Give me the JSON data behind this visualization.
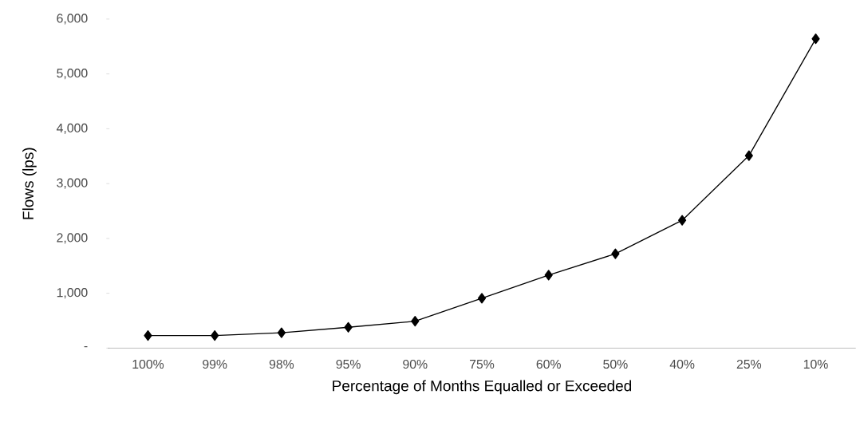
{
  "chart_data": {
    "type": "line",
    "xlabel": "Percentage of Months Equalled or Exceeded",
    "ylabel": "Flows (lps)",
    "categories": [
      "100%",
      "99%",
      "98%",
      "95%",
      "90%",
      "75%",
      "60%",
      "50%",
      "40%",
      "25%",
      "10%"
    ],
    "values": [
      230,
      230,
      280,
      380,
      490,
      910,
      1330,
      1720,
      2330,
      3510,
      5640
    ],
    "color": "#000000",
    "marker": "diamond",
    "line_style": "solid",
    "grid": false,
    "ylim": [
      0,
      6000
    ],
    "yticks": [
      {
        "value": 0,
        "label": "-"
      },
      {
        "value": 1000,
        "label": "1,000"
      },
      {
        "value": 2000,
        "label": "2,000"
      },
      {
        "value": 3000,
        "label": "3,000"
      },
      {
        "value": 4000,
        "label": "4,000"
      },
      {
        "value": 5000,
        "label": "5,000"
      },
      {
        "value": 6000,
        "label": "6,000"
      }
    ]
  }
}
